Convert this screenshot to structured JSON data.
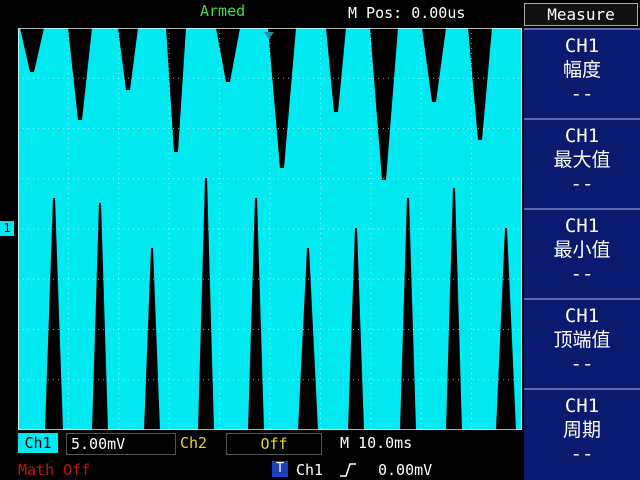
{
  "status": "Armed",
  "position": "M Pos: 0.00us",
  "channel_marker": "1",
  "menu": {
    "title": "Measure",
    "items": [
      {
        "channel": "CH1",
        "label": "幅度",
        "value": "--"
      },
      {
        "channel": "CH1",
        "label": "最大值",
        "value": "--"
      },
      {
        "channel": "CH1",
        "label": "最小值",
        "value": "--"
      },
      {
        "channel": "CH1",
        "label": "顶端值",
        "value": "--"
      },
      {
        "channel": "CH1",
        "label": "周期",
        "value": "--"
      }
    ]
  },
  "bottom": {
    "ch1_label": "Ch1",
    "ch1_scale": "5.00mV",
    "ch2_label": "Ch2",
    "ch2_state": "Off",
    "timebase": "M 10.0ms",
    "math": "Math Off",
    "trigger_icon": "T",
    "trigger_source": "Ch1",
    "trigger_level": "0.00mV"
  }
}
